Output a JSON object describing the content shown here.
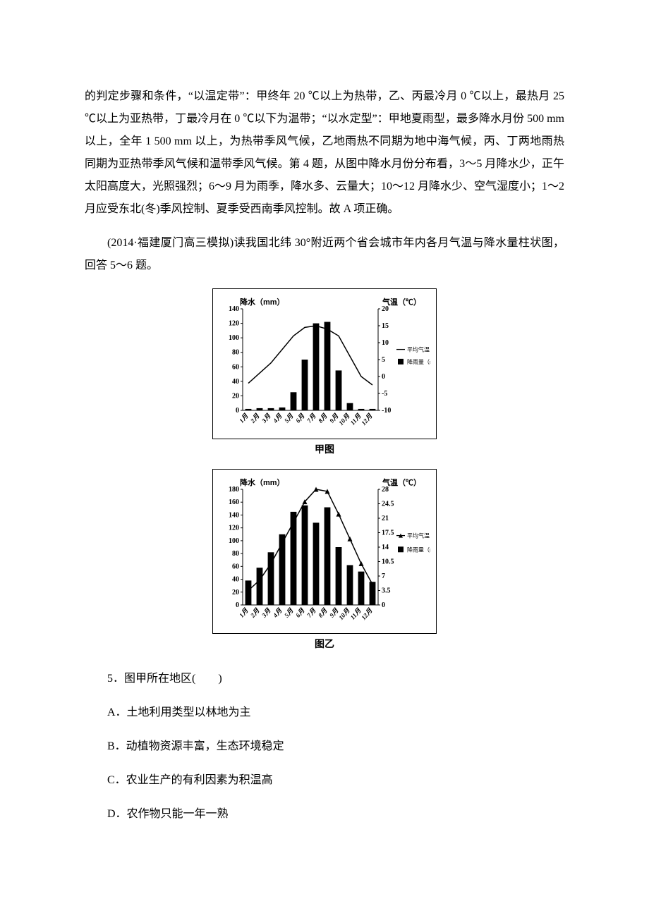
{
  "paragraph1": "的判定步骤和条件，“以温定带”：甲终年 20 ℃以上为热带，乙、丙最冷月 0 ℃以上，最热月 25 ℃以上为亚热带，丁最冷月在 0 ℃以下为温带；“以水定型”：甲地夏雨型，最多降水月份 500 mm 以上，全年 1 500 mm 以上，为热带季风气候，乙地雨热不同期为地中海气候，丙、丁两地雨热同期为亚热带季风气候和温带季风气候。第 4 题，从图中降水月份分布看，3～5 月降水少，正午太阳高度大，光照强烈；6～9 月为雨季，降水多、云量大；10～12 月降水少、空气湿度小；1～2 月应受东北(冬)季风控制、夏季受西南季风控制。故 A 项正确。",
  "paragraph2": "(2014·福建厦门高三模拟)读我国北纬 30°附近两个省会城市年内各月气温与降水量柱状图，回答 5～6 题。",
  "chart1": {
    "caption": "甲图",
    "left_axis_label": "降水（mm）",
    "right_axis_label": "气温（℃）",
    "left_ticks": [
      0,
      20,
      40,
      60,
      80,
      100,
      120,
      140
    ],
    "right_ticks": [
      -10,
      -5,
      0,
      5,
      10,
      15,
      20
    ],
    "months": [
      "1月",
      "2月",
      "3月",
      "4月",
      "5月",
      "6月",
      "7月",
      "8月",
      "9月",
      "10月",
      "11月",
      "12月"
    ],
    "precip": [
      2,
      3,
      3,
      4,
      25,
      70,
      120,
      122,
      55,
      10,
      2,
      2
    ],
    "temp": [
      -2,
      1,
      4,
      8,
      12,
      14.5,
      15,
      14,
      12,
      6,
      0,
      -2.5
    ],
    "legend_temp": "平均气温",
    "legend_precip": "降雨量（mm）",
    "bar_color": "#000000",
    "line_color": "#000000",
    "bg_color": "#ffffff",
    "axis_color": "#000000",
    "font_size_label": 11,
    "font_size_tick": 10,
    "precip_max": 140,
    "temp_min": -10,
    "temp_max": 20
  },
  "chart2": {
    "caption": "图乙",
    "left_axis_label": "降水（mm）",
    "right_axis_label": "气温（℃）",
    "left_ticks": [
      0,
      20,
      40,
      60,
      80,
      100,
      120,
      140,
      160,
      180
    ],
    "right_ticks": [
      0,
      3.5,
      7,
      10.5,
      14,
      17.5,
      21,
      24.5,
      28
    ],
    "months": [
      "1月",
      "2月",
      "3月",
      "4月",
      "5月",
      "6月",
      "7月",
      "8月",
      "9月",
      "10月",
      "11月",
      "12月"
    ],
    "precip": [
      38,
      58,
      82,
      110,
      145,
      155,
      128,
      152,
      90,
      62,
      52,
      36
    ],
    "temp": [
      3.5,
      6,
      10,
      15,
      20,
      25,
      28,
      27.5,
      22,
      16,
      10,
      5
    ],
    "legend_temp": "平均气温",
    "legend_precip": "降雨量（mm）",
    "bar_color": "#000000",
    "line_color": "#000000",
    "bg_color": "#ffffff",
    "axis_color": "#000000",
    "font_size_label": 11,
    "font_size_tick": 10,
    "precip_max": 180,
    "temp_min": 0,
    "temp_max": 28,
    "marker": "triangle"
  },
  "question5": "5．图甲所在地区(　　)",
  "option5A": "A．土地利用类型以林地为主",
  "option5B": "B．动植物资源丰富，生态环境稳定",
  "option5C": "C．农业生产的有利因素为积温高",
  "option5D": "D．农作物只能一年一熟"
}
